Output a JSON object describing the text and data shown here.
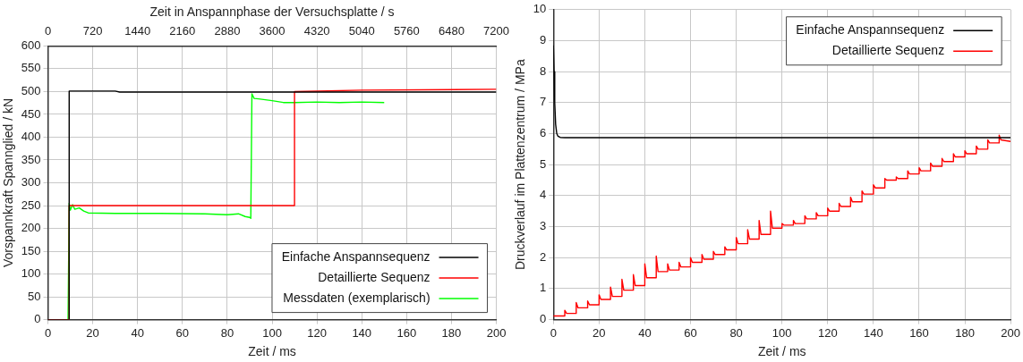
{
  "chart_data": [
    {
      "type": "line",
      "xlabel": "Zeit / ms",
      "ylabel": "Vorspannkraft Spannglied / kN",
      "x2label": "Zeit in Anspannphase der Versuchsplatte / s",
      "xlim": [
        0,
        200
      ],
      "xticks": [
        0,
        20,
        40,
        60,
        80,
        100,
        120,
        140,
        160,
        180,
        200
      ],
      "x2lim": [
        0,
        7200
      ],
      "x2ticks": [
        0,
        720,
        1440,
        2160,
        2880,
        3600,
        4320,
        5040,
        5760,
        6480,
        7200
      ],
      "ylim": [
        0,
        600
      ],
      "yticks": [
        0,
        50,
        100,
        150,
        200,
        250,
        300,
        350,
        400,
        450,
        500,
        550,
        600
      ],
      "grid": true,
      "legend": "bottom right",
      "marker": "none",
      "line_style": "solid",
      "series": [
        {
          "name": "Einfache Anspannsequenz",
          "color": "#000000",
          "x": [
            0,
            9.5,
            9.5,
            30,
            32,
            200
          ],
          "values": [
            0,
            0,
            501,
            501,
            499,
            499
          ]
        },
        {
          "name": "Detaillierte Sequenz",
          "color": "#ff0000",
          "x": [
            0,
            9.5,
            9.5,
            110,
            110,
            140,
            200
          ],
          "values": [
            0,
            0,
            250,
            250,
            500,
            503,
            505
          ]
        },
        {
          "name": "Messdaten (exemplarisch)",
          "color": "#00ff00",
          "x": [
            9,
            9.5,
            10,
            11,
            12,
            14,
            16,
            18,
            30,
            50,
            70,
            80,
            85,
            88,
            90,
            90.5,
            91,
            92,
            94,
            97,
            100,
            105,
            110,
            120,
            130,
            140,
            150
          ],
          "values": [
            0,
            255,
            240,
            252,
            242,
            245,
            238,
            234,
            233,
            233,
            232,
            230,
            232,
            226,
            224,
            222,
            495,
            485,
            484,
            482,
            480,
            476,
            476,
            477,
            476,
            477,
            476
          ]
        }
      ]
    },
    {
      "type": "line",
      "xlabel": "Zeit / ms",
      "ylabel": "Druckverlauf im Plattenzentrum / MPa",
      "xlim": [
        0,
        200
      ],
      "xticks": [
        0,
        20,
        40,
        60,
        80,
        100,
        120,
        140,
        160,
        180,
        200
      ],
      "ylim": [
        0,
        10
      ],
      "yticks": [
        0,
        1,
        2,
        3,
        4,
        5,
        6,
        7,
        8,
        9,
        10
      ],
      "grid": true,
      "legend": "top right",
      "marker": "none",
      "line_style": "solid",
      "series": [
        {
          "name": "Einfache Anspannsequenz",
          "color": "#000000",
          "x": [
            0,
            0.3,
            0.6,
            1,
            1.5,
            2,
            3,
            5,
            200
          ],
          "values": [
            8.85,
            8,
            7,
            6.3,
            6,
            5.92,
            5.88,
            5.87,
            5.87
          ]
        },
        {
          "name": "Detaillierte Sequenz",
          "color": "#ff0000",
          "x": [
            0,
            5,
            5,
            5.8,
            10,
            10,
            10.8,
            15,
            15,
            15.8,
            20,
            20,
            20.8,
            25,
            25,
            25.8,
            30,
            30,
            30.8,
            35,
            35,
            35.8,
            40,
            40,
            40.8,
            45,
            45,
            45.8,
            50,
            50,
            50.8,
            55,
            55,
            55.8,
            60,
            60,
            60.8,
            65,
            65,
            65.8,
            70,
            70,
            70.8,
            75,
            75,
            75.8,
            80,
            80,
            80.8,
            85,
            85,
            85.8,
            90,
            90,
            90.8,
            95,
            95,
            95.8,
            100,
            100,
            100.8,
            105,
            105,
            105.8,
            110,
            110,
            110.8,
            115,
            115,
            115.8,
            120,
            120,
            120.8,
            125,
            125,
            125.8,
            130,
            130,
            130.8,
            135,
            135,
            135.8,
            140,
            140,
            140.8,
            145,
            145,
            145.8,
            150,
            150,
            150.8,
            155,
            155,
            155.8,
            160,
            160,
            160.8,
            165,
            165,
            165.8,
            170,
            170,
            170.8,
            175,
            175,
            175.8,
            180,
            180,
            180.8,
            185,
            185,
            185.8,
            190,
            190,
            190.8,
            195,
            195,
            195.8,
            200
          ],
          "values": [
            0.12,
            0.12,
            0.3,
            0.2,
            0.2,
            0.55,
            0.38,
            0.38,
            0.6,
            0.48,
            0.48,
            0.8,
            0.65,
            0.65,
            1.05,
            0.75,
            0.75,
            1.3,
            0.95,
            0.95,
            1.45,
            1.1,
            1.1,
            1.8,
            1.35,
            1.35,
            2.05,
            1.55,
            1.55,
            1.8,
            1.6,
            1.6,
            1.85,
            1.7,
            1.7,
            2,
            1.85,
            1.85,
            2.1,
            1.95,
            1.95,
            2.2,
            2.1,
            2.1,
            2.35,
            2.25,
            2.25,
            2.65,
            2.45,
            2.45,
            2.9,
            2.6,
            2.6,
            3.2,
            2.75,
            2.75,
            3.5,
            2.95,
            2.95,
            3.1,
            3.05,
            3.05,
            3.2,
            3.1,
            3.1,
            3.35,
            3.25,
            3.25,
            3.45,
            3.35,
            3.35,
            3.6,
            3.5,
            3.5,
            3.75,
            3.65,
            3.65,
            3.95,
            3.8,
            3.8,
            4.15,
            4.05,
            4.05,
            4.35,
            4.25,
            4.25,
            4.55,
            4.5,
            4.5,
            4.6,
            4.55,
            4.55,
            4.8,
            4.7,
            4.7,
            4.9,
            4.8,
            4.8,
            5.05,
            4.95,
            4.95,
            5.2,
            5.1,
            5.1,
            5.35,
            5.25,
            5.25,
            5.45,
            5.35,
            5.35,
            5.6,
            5.5,
            5.5,
            5.8,
            5.7,
            5.7,
            5.95,
            5.8,
            5.75
          ]
        }
      ]
    }
  ]
}
